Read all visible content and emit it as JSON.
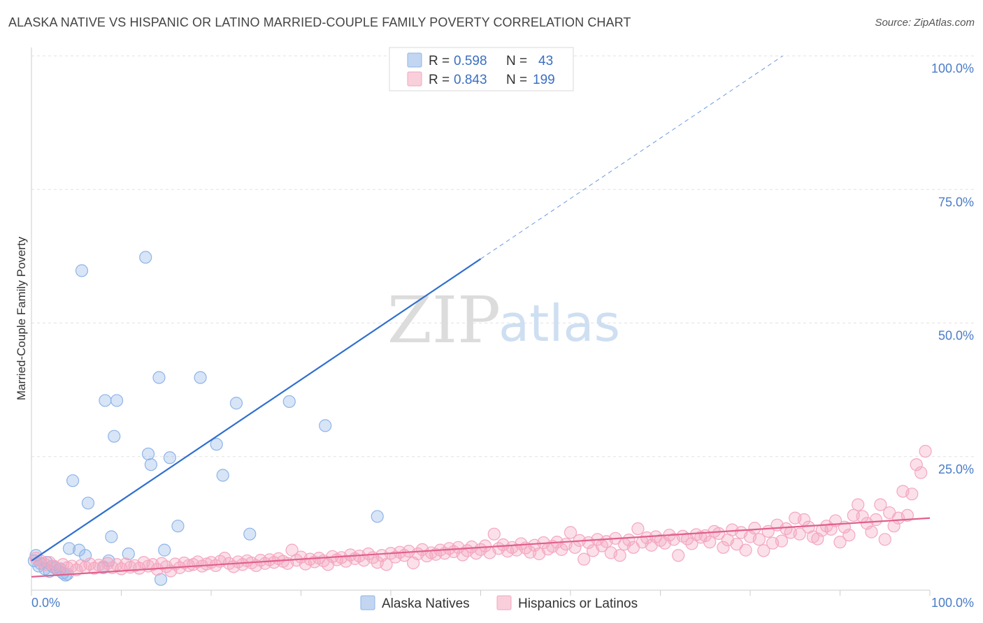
{
  "header": {
    "title": "ALASKA NATIVE VS HISPANIC OR LATINO MARRIED-COUPLE FAMILY POVERTY CORRELATION CHART",
    "source": "Source: ZipAtlas.com"
  },
  "watermark": {
    "zip": "ZIP",
    "atlas": "atlas"
  },
  "chart_data": {
    "type": "scatter",
    "title": "ALASKA NATIVE VS HISPANIC OR LATINO MARRIED-COUPLE FAMILY POVERTY CORRELATION CHART",
    "xlabel": "",
    "ylabel": "Married-Couple Family Poverty",
    "xlim": [
      0,
      100
    ],
    "ylim": [
      0,
      100
    ],
    "x_tick_labels": {
      "left": "0.0%",
      "right": "100.0%"
    },
    "y_tick_labels": [
      "100.0%",
      "75.0%",
      "50.0%",
      "25.0%"
    ],
    "y_tick_values": [
      100,
      75,
      50,
      25
    ],
    "grid": true,
    "legend_position": "top-center",
    "stats": [
      {
        "r_label": "R =",
        "r_value": "0.598",
        "n_label": "N =",
        "n_value": "43"
      },
      {
        "r_label": "R =",
        "r_value": "0.843",
        "n_label": "N =",
        "n_value": "199"
      }
    ],
    "series": [
      {
        "name": "Alaska Natives",
        "color": "#8fb4e8",
        "line_color": "#2f6fcf",
        "trend": {
          "x0": 0,
          "y0": 5.5,
          "x1": 50,
          "y1": 62,
          "dashed_to_x": 100,
          "dashed_to_y": 118
        },
        "points": [
          [
            0.3,
            5.5
          ],
          [
            0.5,
            6.5
          ],
          [
            0.8,
            4.5
          ],
          [
            1.0,
            5.0
          ],
          [
            1.5,
            4.0
          ],
          [
            1.7,
            5.2
          ],
          [
            2.0,
            3.5
          ],
          [
            2.3,
            4.5
          ],
          [
            2.6,
            4.2
          ],
          [
            2.9,
            3.8
          ],
          [
            3.2,
            4.0
          ],
          [
            3.5,
            3.2
          ],
          [
            3.8,
            2.8
          ],
          [
            4.0,
            3.0
          ],
          [
            4.2,
            7.8
          ],
          [
            4.6,
            20.5
          ],
          [
            5.3,
            7.5
          ],
          [
            5.6,
            59.8
          ],
          [
            6.0,
            6.5
          ],
          [
            6.3,
            16.3
          ],
          [
            8.0,
            4.2
          ],
          [
            8.2,
            35.5
          ],
          [
            8.6,
            5.5
          ],
          [
            8.9,
            10.0
          ],
          [
            9.2,
            28.8
          ],
          [
            9.5,
            35.5
          ],
          [
            10.8,
            6.8
          ],
          [
            12.7,
            62.3
          ],
          [
            13.0,
            25.5
          ],
          [
            13.3,
            23.5
          ],
          [
            14.2,
            39.8
          ],
          [
            14.4,
            2.0
          ],
          [
            14.8,
            7.5
          ],
          [
            15.4,
            24.8
          ],
          [
            16.3,
            12.0
          ],
          [
            18.8,
            39.8
          ],
          [
            20.6,
            27.3
          ],
          [
            21.3,
            21.5
          ],
          [
            22.8,
            35.0
          ],
          [
            24.3,
            10.5
          ],
          [
            28.7,
            35.3
          ],
          [
            32.7,
            30.8
          ],
          [
            38.5,
            13.8
          ]
        ]
      },
      {
        "name": "Hispanics or Latinos",
        "color": "#f4a7bf",
        "line_color": "#e0608d",
        "trend": {
          "x0": 0,
          "y0": 2.5,
          "x1": 100,
          "y1": 13.5
        },
        "points": [
          [
            0.5,
            6.0
          ],
          [
            1.0,
            5.5
          ],
          [
            1.5,
            4.8
          ],
          [
            2.0,
            5.2
          ],
          [
            2.5,
            4.5
          ],
          [
            3.0,
            4.0
          ],
          [
            3.5,
            4.8
          ],
          [
            4.0,
            4.2
          ],
          [
            4.5,
            4.5
          ],
          [
            5.0,
            3.8
          ],
          [
            5.5,
            4.6
          ],
          [
            6.0,
            4.3
          ],
          [
            6.5,
            4.9
          ],
          [
            7.0,
            4.1
          ],
          [
            7.5,
            4.7
          ],
          [
            8.0,
            4.4
          ],
          [
            8.5,
            5.0
          ],
          [
            9.0,
            4.2
          ],
          [
            9.5,
            4.8
          ],
          [
            10.0,
            4.0
          ],
          [
            10.5,
            4.9
          ],
          [
            11.0,
            4.3
          ],
          [
            11.5,
            4.6
          ],
          [
            12.0,
            4.1
          ],
          [
            12.5,
            5.2
          ],
          [
            13.0,
            4.5
          ],
          [
            13.5,
            4.8
          ],
          [
            14.0,
            3.9
          ],
          [
            14.5,
            5.0
          ],
          [
            15.0,
            4.4
          ],
          [
            15.5,
            3.6
          ],
          [
            16.0,
            4.9
          ],
          [
            16.5,
            4.2
          ],
          [
            17.0,
            5.1
          ],
          [
            17.5,
            4.6
          ],
          [
            18.0,
            4.8
          ],
          [
            18.5,
            5.3
          ],
          [
            19.0,
            4.5
          ],
          [
            19.5,
            4.9
          ],
          [
            20.0,
            5.2
          ],
          [
            20.5,
            4.6
          ],
          [
            21.0,
            5.4
          ],
          [
            21.5,
            6.0
          ],
          [
            22.0,
            5.0
          ],
          [
            22.5,
            4.4
          ],
          [
            23.0,
            5.3
          ],
          [
            23.5,
            4.8
          ],
          [
            24.0,
            5.5
          ],
          [
            24.5,
            5.1
          ],
          [
            25.0,
            4.6
          ],
          [
            25.5,
            5.6
          ],
          [
            26.0,
            5.0
          ],
          [
            26.5,
            5.7
          ],
          [
            27.0,
            5.2
          ],
          [
            27.5,
            5.9
          ],
          [
            28.0,
            5.4
          ],
          [
            28.5,
            5.0
          ],
          [
            29.0,
            7.5
          ],
          [
            29.5,
            5.6
          ],
          [
            30.0,
            6.2
          ],
          [
            30.5,
            4.9
          ],
          [
            31.0,
            5.8
          ],
          [
            31.5,
            5.3
          ],
          [
            32.0,
            6.0
          ],
          [
            32.5,
            5.5
          ],
          [
            33.0,
            4.8
          ],
          [
            33.5,
            6.3
          ],
          [
            34.0,
            5.7
          ],
          [
            34.5,
            6.1
          ],
          [
            35.0,
            5.4
          ],
          [
            35.5,
            6.6
          ],
          [
            36.0,
            5.9
          ],
          [
            36.5,
            6.4
          ],
          [
            37.0,
            5.6
          ],
          [
            37.5,
            6.8
          ],
          [
            38.0,
            6.1
          ],
          [
            38.5,
            5.2
          ],
          [
            39.0,
            6.5
          ],
          [
            39.5,
            4.8
          ],
          [
            40.0,
            6.9
          ],
          [
            40.5,
            6.2
          ],
          [
            41.0,
            7.1
          ],
          [
            41.5,
            6.5
          ],
          [
            42.0,
            7.3
          ],
          [
            42.5,
            5.1
          ],
          [
            43.0,
            6.8
          ],
          [
            43.5,
            7.6
          ],
          [
            44.0,
            6.4
          ],
          [
            44.5,
            7.0
          ],
          [
            45.0,
            6.7
          ],
          [
            45.5,
            7.5
          ],
          [
            46.0,
            6.9
          ],
          [
            46.5,
            7.8
          ],
          [
            47.0,
            7.2
          ],
          [
            47.5,
            8.0
          ],
          [
            48.0,
            6.6
          ],
          [
            48.5,
            7.4
          ],
          [
            49.0,
            8.1
          ],
          [
            49.5,
            6.9
          ],
          [
            50.0,
            7.6
          ],
          [
            50.5,
            8.3
          ],
          [
            51.0,
            7.0
          ],
          [
            51.5,
            10.5
          ],
          [
            52.0,
            7.8
          ],
          [
            52.5,
            8.5
          ],
          [
            53.0,
            7.3
          ],
          [
            53.5,
            8.0
          ],
          [
            54.0,
            7.5
          ],
          [
            54.5,
            8.7
          ],
          [
            55.0,
            7.9
          ],
          [
            55.5,
            7.1
          ],
          [
            56.0,
            8.4
          ],
          [
            56.5,
            6.8
          ],
          [
            57.0,
            8.9
          ],
          [
            57.5,
            7.7
          ],
          [
            58.0,
            8.2
          ],
          [
            58.5,
            9.0
          ],
          [
            59.0,
            7.6
          ],
          [
            59.5,
            8.6
          ],
          [
            60.0,
            10.8
          ],
          [
            60.5,
            8.0
          ],
          [
            61.0,
            9.3
          ],
          [
            61.5,
            5.8
          ],
          [
            62.0,
            8.9
          ],
          [
            62.5,
            7.4
          ],
          [
            63.0,
            9.5
          ],
          [
            63.5,
            8.3
          ],
          [
            64.0,
            9.1
          ],
          [
            64.5,
            7.0
          ],
          [
            65.0,
            9.7
          ],
          [
            65.5,
            6.5
          ],
          [
            66.0,
            8.6
          ],
          [
            66.5,
            9.4
          ],
          [
            67.0,
            8.0
          ],
          [
            67.5,
            11.5
          ],
          [
            68.0,
            9.0
          ],
          [
            68.5,
            9.8
          ],
          [
            69.0,
            8.4
          ],
          [
            69.5,
            10.0
          ],
          [
            70.0,
            9.3
          ],
          [
            70.5,
            8.8
          ],
          [
            71.0,
            10.3
          ],
          [
            71.5,
            9.5
          ],
          [
            72.0,
            6.5
          ],
          [
            72.5,
            10.1
          ],
          [
            73.0,
            9.6
          ],
          [
            73.5,
            8.7
          ],
          [
            74.0,
            10.4
          ],
          [
            74.5,
            9.9
          ],
          [
            75.0,
            10.2
          ],
          [
            75.5,
            9.0
          ],
          [
            76.0,
            11.0
          ],
          [
            76.5,
            10.6
          ],
          [
            77.0,
            8.0
          ],
          [
            77.5,
            9.4
          ],
          [
            78.0,
            11.3
          ],
          [
            78.5,
            8.6
          ],
          [
            79.0,
            10.8
          ],
          [
            79.5,
            7.5
          ],
          [
            80.0,
            10.0
          ],
          [
            80.5,
            11.6
          ],
          [
            81.0,
            9.5
          ],
          [
            81.5,
            7.4
          ],
          [
            82.0,
            11.0
          ],
          [
            82.5,
            8.8
          ],
          [
            83.0,
            12.2
          ],
          [
            83.5,
            9.2
          ],
          [
            84.0,
            11.5
          ],
          [
            84.5,
            10.8
          ],
          [
            85.0,
            13.5
          ],
          [
            85.5,
            10.5
          ],
          [
            86.0,
            13.2
          ],
          [
            86.5,
            11.8
          ],
          [
            87.0,
            10.0
          ],
          [
            87.5,
            9.6
          ],
          [
            88.0,
            11.2
          ],
          [
            88.5,
            12.0
          ],
          [
            89.0,
            11.4
          ],
          [
            89.5,
            13.0
          ],
          [
            90.0,
            9.0
          ],
          [
            90.5,
            11.8
          ],
          [
            91.0,
            10.3
          ],
          [
            91.5,
            14.0
          ],
          [
            92.0,
            16.0
          ],
          [
            92.5,
            13.8
          ],
          [
            93.0,
            12.5
          ],
          [
            93.5,
            10.9
          ],
          [
            94.0,
            13.2
          ],
          [
            94.5,
            16.0
          ],
          [
            95.0,
            9.5
          ],
          [
            95.5,
            14.5
          ],
          [
            96.0,
            12.0
          ],
          [
            96.5,
            13.5
          ],
          [
            97.0,
            18.5
          ],
          [
            97.5,
            14.0
          ],
          [
            98.0,
            18.0
          ],
          [
            98.5,
            23.5
          ],
          [
            99.0,
            22.0
          ],
          [
            99.5,
            26.0
          ]
        ]
      }
    ]
  },
  "bottom_legend": [
    {
      "label": "Alaska Natives",
      "color": "#8fb4e8"
    },
    {
      "label": "Hispanics or Latinos",
      "color": "#f4a7bf"
    }
  ]
}
